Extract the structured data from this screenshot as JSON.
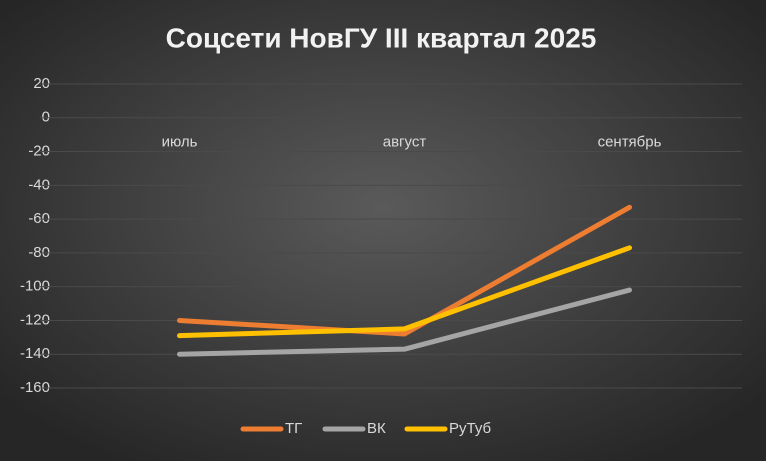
{
  "chart_data": {
    "type": "line",
    "title": "Соцсети НовГУ III квартал 2025",
    "categories": [
      "июль",
      "август",
      "сентябрь"
    ],
    "series": [
      {
        "name": "ТГ",
        "color": "#ed7d31",
        "values": [
          -120,
          -128,
          -53
        ]
      },
      {
        "name": "ВК",
        "color": "#a5a5a5",
        "values": [
          -140,
          -137,
          -102
        ]
      },
      {
        "name": "РуТуб",
        "color": "#ffc000",
        "values": [
          -129,
          -125,
          -77
        ]
      }
    ],
    "ylim": [
      -160,
      20
    ],
    "yticks": [
      20,
      0,
      -20,
      -40,
      -60,
      -80,
      -100,
      -120,
      -140,
      -160
    ],
    "grid": true,
    "legend": "bottom"
  }
}
